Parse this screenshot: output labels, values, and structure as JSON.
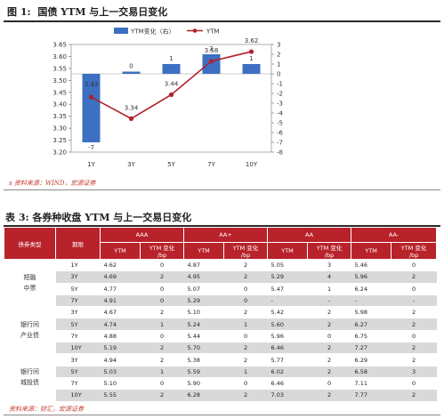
{
  "figure": {
    "label": "图 1:",
    "title": "国债 YTM 与上一交易日变化",
    "source": "s 资料来源：WIND，宏源证券"
  },
  "chart_data": {
    "type": "bar",
    "categories": [
      "1Y",
      "3Y",
      "5Y",
      "7Y",
      "10Y"
    ],
    "series": [
      {
        "name": "YTM变化（右）",
        "type": "bar",
        "axis": "right",
        "values": [
          -7,
          0,
          1,
          2,
          1
        ],
        "color": "#3d6fc2"
      },
      {
        "name": "YTM",
        "type": "line",
        "axis": "left",
        "values": [
          3.43,
          3.34,
          3.44,
          3.58,
          3.62
        ],
        "color": "#b0202a"
      }
    ],
    "bar_labels": [
      "-7",
      "0",
      "1",
      "2",
      "1"
    ],
    "line_labels": [
      "3.43",
      "3.34",
      "3.44",
      "3.58",
      "3.62"
    ],
    "left_axis": {
      "ylim": [
        3.2,
        3.65
      ],
      "ticks": [
        "3.20",
        "3.25",
        "3.30",
        "3.35",
        "3.40",
        "3.45",
        "3.50",
        "3.55",
        "3.60",
        "3.65"
      ]
    },
    "right_axis": {
      "ylim": [
        -8,
        3
      ],
      "ticks": [
        "-8",
        "-7",
        "-6",
        "-5",
        "-4",
        "-3",
        "-2",
        "-1",
        "0",
        "1",
        "2",
        "3"
      ]
    },
    "legend_position": "top"
  },
  "table": {
    "label": "表 3:",
    "title": "各券种收盘 YTM 与上一交易日变化",
    "header_type": "债券类型",
    "header_term": "期限",
    "ratings": [
      "AAA",
      "AA+",
      "AA",
      "AA-"
    ],
    "sub_ytm": "YTM",
    "sub_change": "YTM 变化",
    "sub_unit": "/bp",
    "groups": [
      {
        "name_line1": "短融",
        "name_line2": "中票"
      },
      {
        "name_line1": "银行间",
        "name_line2": "产业债"
      },
      {
        "name_line1": "银行间",
        "name_line2": "城投债"
      }
    ],
    "rows": [
      [
        "1Y",
        "4.62",
        "0",
        "4.87",
        "2",
        "5.05",
        "3",
        "5.46",
        "0"
      ],
      [
        "3Y",
        "4.69",
        "2",
        "4.95",
        "2",
        "5.29",
        "4",
        "5.96",
        "2"
      ],
      [
        "5Y",
        "4.77",
        "0",
        "5.07",
        "0",
        "5.47",
        "1",
        "6.24",
        "0"
      ],
      [
        "7Y",
        "4.91",
        "0",
        "5.29",
        "0",
        "-",
        "-",
        "-",
        "-"
      ],
      [
        "3Y",
        "4.67",
        "2",
        "5.10",
        "2",
        "5.42",
        "2",
        "5.98",
        "2"
      ],
      [
        "5Y",
        "4.74",
        "1",
        "5.24",
        "1",
        "5.60",
        "2",
        "6.27",
        "2"
      ],
      [
        "7Y",
        "4.88",
        "0",
        "5.44",
        "0",
        "5.96",
        "0",
        "6.75",
        "0"
      ],
      [
        "10Y",
        "5.19",
        "2",
        "5.70",
        "2",
        "6.46",
        "2",
        "7.27",
        "2"
      ],
      [
        "3Y",
        "4.94",
        "2",
        "5.38",
        "2",
        "5.77",
        "2",
        "6.29",
        "2"
      ],
      [
        "5Y",
        "5.03",
        "1",
        "5.59",
        "1",
        "6.02",
        "2",
        "6.58",
        "3"
      ],
      [
        "7Y",
        "5.10",
        "0",
        "5.90",
        "0",
        "6.46",
        "0",
        "7.11",
        "0"
      ],
      [
        "10Y",
        "5.55",
        "2",
        "6.28",
        "2",
        "7.03",
        "2",
        "7.77",
        "2"
      ]
    ],
    "source": "资料来源：财汇，宏源证券"
  }
}
